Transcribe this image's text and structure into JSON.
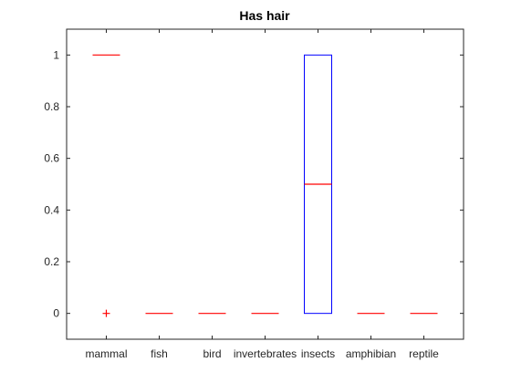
{
  "chart_data": {
    "type": "box",
    "title": "Has hair",
    "xlabel": "",
    "ylabel": "",
    "ylim": [
      -0.1,
      1.1
    ],
    "yticks": [
      0,
      0.2,
      0.4,
      0.6,
      0.8,
      1
    ],
    "ytick_labels": [
      "0",
      "0.2",
      "0.4",
      "0.6",
      "0.8",
      "1"
    ],
    "grid": false,
    "categories": [
      "mammal",
      "fish",
      "bird",
      "invertebrates",
      "insects",
      "amphibian",
      "reptile"
    ],
    "boxes": [
      {
        "q1": 1,
        "median": 1,
        "q3": 1,
        "whisker_low": 1,
        "whisker_high": 1,
        "outliers": [
          0
        ]
      },
      {
        "q1": 0,
        "median": 0,
        "q3": 0,
        "whisker_low": 0,
        "whisker_high": 0,
        "outliers": []
      },
      {
        "q1": 0,
        "median": 0,
        "q3": 0,
        "whisker_low": 0,
        "whisker_high": 0,
        "outliers": []
      },
      {
        "q1": 0,
        "median": 0,
        "q3": 0,
        "whisker_low": 0,
        "whisker_high": 0,
        "outliers": []
      },
      {
        "q1": 0,
        "median": 0.5,
        "q3": 1,
        "whisker_low": 0,
        "whisker_high": 1,
        "outliers": []
      },
      {
        "q1": 0,
        "median": 0,
        "q3": 0,
        "whisker_low": 0,
        "whisker_high": 0,
        "outliers": []
      },
      {
        "q1": 0,
        "median": 0,
        "q3": 0,
        "whisker_low": 0,
        "whisker_high": 0,
        "outliers": []
      }
    ],
    "colors": {
      "box": "#0000ff",
      "median": "#ff0000",
      "outlier": "#ff0000",
      "axis": "#262626"
    }
  }
}
